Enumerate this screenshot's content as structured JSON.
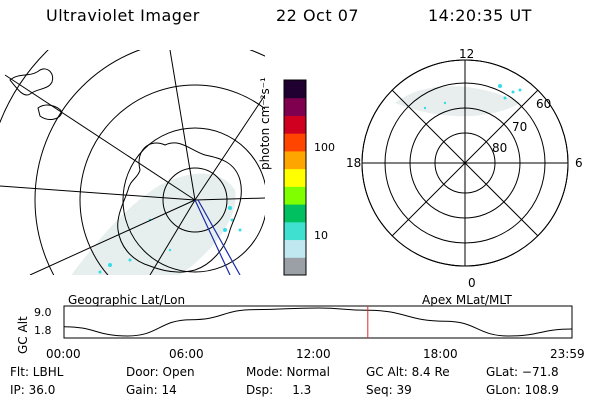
{
  "header": {
    "instrument": "Ultraviolet Imager",
    "date": "22 Oct 07",
    "time": "14:20:35 UT"
  },
  "colorbar": {
    "unit_label": "photon cm⁻²s⁻¹",
    "ticks": [
      "100",
      "10"
    ]
  },
  "polar_plot": {
    "mlt_labels": [
      "12",
      "18",
      "6",
      "0"
    ],
    "lat_labels": [
      "60",
      "70",
      "80"
    ]
  },
  "captions": {
    "geo": "Geographic Lat/Lon",
    "apex": "Apex MLat/MLT"
  },
  "altitude_panel": {
    "ylabel": "GC Alt",
    "yticks": [
      "9.0",
      "1.8"
    ],
    "xticks": [
      "00:00",
      "06:00",
      "12:00",
      "18:00",
      "23:59"
    ]
  },
  "footer": {
    "row1": [
      "Flt: LBHL",
      "Door: Open",
      "Mode: Normal",
      "GC Alt: 8.4 Re",
      "GLat: −71.8"
    ],
    "row2": [
      "IP: 36.0",
      "Gain: 14",
      "Dsp:     1.3",
      "Seq: 39",
      "GLon: 108.9"
    ]
  },
  "colors": {
    "aurora": "#33dde6",
    "marker": "#d9302c"
  },
  "colormap": [
    "#9aa0a6",
    "#bfe8f0",
    "#40e0d0",
    "#00c060",
    "#80ff00",
    "#ffff00",
    "#ffa500",
    "#ff4500",
    "#d00020",
    "#800050",
    "#200030"
  ],
  "chart_data": {
    "type": "line",
    "ylabel": "GC Alt",
    "x": [
      "00:00",
      "03:00",
      "06:00",
      "09:00",
      "12:00",
      "14:20",
      "18:00",
      "21:00",
      "23:59"
    ],
    "values": [
      4.2,
      1.8,
      6.0,
      8.6,
      9.0,
      8.4,
      5.6,
      1.8,
      3.6
    ],
    "marker_time": "14:20:35"
  }
}
